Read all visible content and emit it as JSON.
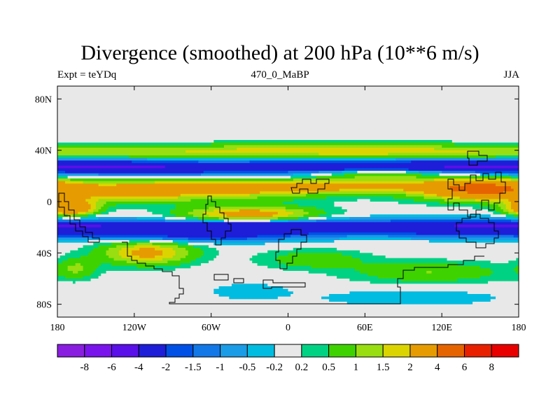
{
  "chart_data": {
    "type": "heatmap",
    "title": "Divergence (smoothed) at 200 hPa (10**6 m/s)",
    "subtitle_left": "Expt = teYDq",
    "subtitle_center": "470_0_MaBP",
    "subtitle_right": "JJA",
    "xlim": [
      -180,
      180
    ],
    "ylim": [
      -90,
      90
    ],
    "x_ticks": [
      {
        "value": -180,
        "label": "180"
      },
      {
        "value": -120,
        "label": "120W"
      },
      {
        "value": -60,
        "label": "60W"
      },
      {
        "value": 0,
        "label": "0"
      },
      {
        "value": 60,
        "label": "60E"
      },
      {
        "value": 120,
        "label": "120E"
      },
      {
        "value": 180,
        "label": "180"
      }
    ],
    "y_ticks": [
      {
        "value": 80,
        "label": "80N"
      },
      {
        "value": 40,
        "label": "40N"
      },
      {
        "value": 0,
        "label": "0"
      },
      {
        "value": -40,
        "label": "40S"
      },
      {
        "value": -80,
        "label": "80S"
      }
    ],
    "colorbar": {
      "labels": [
        "-8",
        "-6",
        "-4",
        "-2",
        "-1.5",
        "-1",
        "-0.5",
        "-0.2",
        "0.2",
        "0.5",
        "1",
        "1.5",
        "2",
        "4",
        "6",
        "8"
      ],
      "colors": [
        "#8a1ee0",
        "#7a14ec",
        "#5a10e8",
        "#1e1ed8",
        "#0050e6",
        "#1278e8",
        "#1a9ce6",
        "#00bce0",
        "#e8e8e8",
        "#00d284",
        "#3ed200",
        "#98de10",
        "#dcd400",
        "#e69c00",
        "#e66400",
        "#e82000",
        "#e80000"
      ]
    },
    "field": {
      "background_value": 0,
      "features": [
        {
          "lon": -180,
          "lat": 38,
          "lon_w": 400,
          "lat_w": 6,
          "value": 1.1
        },
        {
          "lon": 30,
          "lat": 40,
          "lon_w": 140,
          "lat_w": 5,
          "value": 1.0
        },
        {
          "lon": -90,
          "lat": 26,
          "lon_w": 130,
          "lat_w": 6,
          "value": -2.2
        },
        {
          "lon": 120,
          "lat": 28,
          "lon_w": 150,
          "lat_w": 5,
          "value": -3.0
        },
        {
          "lon": -180,
          "lat": 27,
          "lon_w": 400,
          "lat_w": 3,
          "value": -0.8
        },
        {
          "lon": -120,
          "lat": 8,
          "lon_w": 130,
          "lat_w": 8,
          "value": 2.3
        },
        {
          "lon": 20,
          "lat": 12,
          "lon_w": 120,
          "lat_w": 5,
          "value": 2.2
        },
        {
          "lon": 70,
          "lat": 22,
          "lon_w": 50,
          "lat_w": 5,
          "value": 1.5
        },
        {
          "lon": 150,
          "lat": 10,
          "lon_w": 40,
          "lat_w": 8,
          "value": 3.0
        },
        {
          "lon": -170,
          "lat": -5,
          "lon_w": 20,
          "lat_w": 6,
          "value": 3.5
        },
        {
          "lon": -30,
          "lat": -10,
          "lon_w": 50,
          "lat_w": 6,
          "value": 2.6
        },
        {
          "lon": -120,
          "lat": -22,
          "lon_w": 150,
          "lat_w": 6,
          "value": -2.3
        },
        {
          "lon": 90,
          "lat": -20,
          "lon_w": 200,
          "lat_w": 6,
          "value": -2.5
        },
        {
          "lon": -180,
          "lat": -18,
          "lon_w": 400,
          "lat_w": 2,
          "value": -0.8
        },
        {
          "lon": -60,
          "lat": -28,
          "lon_w": 60,
          "lat_w": 4,
          "value": -1.2
        },
        {
          "lon": -110,
          "lat": -40,
          "lon_w": 35,
          "lat_w": 9,
          "value": 2.3
        },
        {
          "lon": -165,
          "lat": -52,
          "lon_w": 15,
          "lat_w": 8,
          "value": 1.0
        },
        {
          "lon": 20,
          "lat": -45,
          "lon_w": 40,
          "lat_w": 7,
          "value": 0.9
        },
        {
          "lon": 110,
          "lat": -55,
          "lon_w": 60,
          "lat_w": 8,
          "value": 1.0
        },
        {
          "lon": -30,
          "lat": -70,
          "lon_w": 30,
          "lat_w": 6,
          "value": -0.5
        },
        {
          "lon": 95,
          "lat": -75,
          "lon_w": 70,
          "lat_w": 6,
          "value": -0.5
        }
      ]
    }
  }
}
